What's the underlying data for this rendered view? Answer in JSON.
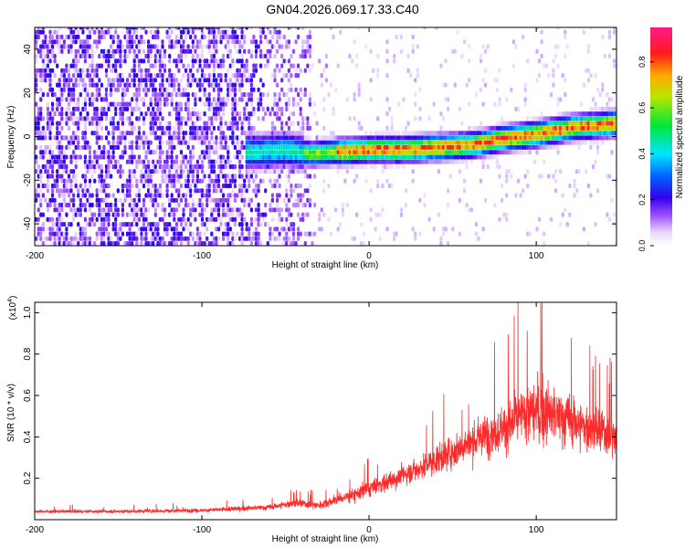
{
  "title": "GN04.2026.069.17.33.C40",
  "colors": {
    "trace": "#ff2a2a",
    "axis": "#000000"
  },
  "chart_data": [
    {
      "type": "heatmap",
      "panel": "spectrogram",
      "xlabel": "Height of straight line (km)",
      "ylabel": "Frequency (Hz)",
      "xlim": [
        -200,
        148
      ],
      "ylim": [
        -50,
        50
      ],
      "xticks": [
        -200,
        -100,
        0,
        100
      ],
      "xtick_labels": [
        "-200",
        "-100",
        "0",
        "100"
      ],
      "yticks": [
        -40,
        -20,
        0,
        20,
        40
      ],
      "ytick_labels": [
        "-40",
        "-20",
        "0",
        "20",
        "40"
      ],
      "colorbar": {
        "label": "Normalized spectral amplitude",
        "range": [
          0,
          0.95
        ],
        "ticks": [
          0.0,
          0.2,
          0.4,
          0.6,
          0.8
        ],
        "tick_labels": [
          "0.0",
          "0.2",
          "0.4",
          "0.6",
          "0.8"
        ]
      },
      "ridge": {
        "x": [
          -65,
          -50,
          -35,
          -20,
          0,
          20,
          40,
          60,
          80,
          100,
          120,
          148
        ],
        "frequency": [
          -8,
          -7,
          -9,
          -8,
          -7,
          -7,
          -6,
          -5,
          -2,
          0,
          3,
          5
        ]
      }
    },
    {
      "type": "line",
      "panel": "snr",
      "xlabel": "Height of straight line (km)",
      "ylabel": "SNR (10 * v/v)",
      "yscale_label": "(x10",
      "yscale_exp": "4",
      "yscale_close": ")",
      "xlim": [
        -200,
        148
      ],
      "ylim": [
        0,
        1.05
      ],
      "xticks": [
        -200,
        -100,
        0,
        100
      ],
      "xtick_labels": [
        "-200",
        "-100",
        "0",
        "100"
      ],
      "yticks": [
        0.2,
        0.4,
        0.6,
        0.8,
        1.0
      ],
      "ytick_labels": [
        "0.2",
        "0.4",
        "0.6",
        "0.8",
        "1.0"
      ],
      "envelope": {
        "x": [
          -200,
          -150,
          -100,
          -60,
          -45,
          -30,
          -10,
          10,
          30,
          50,
          70,
          85,
          95,
          105,
          120,
          135,
          148
        ],
        "mean": [
          0.04,
          0.04,
          0.045,
          0.06,
          0.08,
          0.07,
          0.12,
          0.18,
          0.25,
          0.33,
          0.41,
          0.46,
          0.52,
          0.52,
          0.48,
          0.43,
          0.4
        ],
        "noise": [
          0.01,
          0.012,
          0.015,
          0.02,
          0.03,
          0.03,
          0.05,
          0.07,
          0.09,
          0.12,
          0.15,
          0.18,
          0.22,
          0.22,
          0.2,
          0.17,
          0.15
        ]
      }
    }
  ]
}
